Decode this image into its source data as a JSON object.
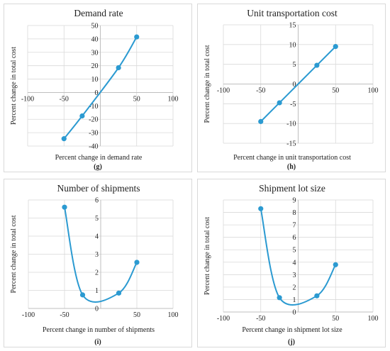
{
  "colors": {
    "series": "#2b9ad1",
    "axis": "#bfbfbf",
    "grid": "#d9d9d9"
  },
  "chart_data": [
    {
      "type": "line",
      "title": "Demand rate",
      "xlabel": "Percent change in demand rate",
      "ylabel": "Percent change in total cost",
      "panel_label": "(g)",
      "xlim": [
        -100,
        100
      ],
      "ylim": [
        -40,
        50
      ],
      "xticks": [
        -100,
        -50,
        0,
        50,
        100
      ],
      "yticks": [
        -40,
        -30,
        -20,
        -10,
        0,
        10,
        20,
        30,
        40,
        50
      ],
      "grid": true,
      "x": [
        -50,
        -25,
        25,
        50
      ],
      "y": [
        -34.5,
        -17.5,
        18.5,
        41.5
      ]
    },
    {
      "type": "line",
      "title": "Unit transportation cost",
      "xlabel": "Percent change in unit transportation cost",
      "ylabel": "Percent change in total cost",
      "panel_label": "(h)",
      "xlim": [
        -100,
        100
      ],
      "ylim": [
        -15,
        15
      ],
      "xticks": [
        -100,
        -50,
        0,
        50,
        100
      ],
      "yticks": [
        -15,
        -10,
        -5,
        0,
        5,
        10,
        15
      ],
      "grid": true,
      "x": [
        -50,
        -25,
        25,
        50
      ],
      "y": [
        -9.5,
        -4.75,
        4.75,
        9.5
      ]
    },
    {
      "type": "line",
      "title": "Number of shipments",
      "xlabel": "Percent change in number of shipments",
      "ylabel": "Percent change in total cost",
      "panel_label": "(i)",
      "xlim": [
        -100,
        100
      ],
      "ylim": [
        0,
        6
      ],
      "xticks": [
        -100,
        -50,
        0,
        50,
        100
      ],
      "yticks": [
        0,
        1,
        2,
        3,
        4,
        5,
        6
      ],
      "grid": true,
      "x": [
        -50,
        -25,
        25,
        50
      ],
      "y": [
        5.6,
        0.75,
        0.85,
        2.55
      ]
    },
    {
      "type": "line",
      "title": "Shipment lot size",
      "xlabel": "Percent change in shipment lot size",
      "ylabel": "Percent change in total cost",
      "panel_label": "(j)",
      "xlim": [
        -100,
        100
      ],
      "ylim": [
        0,
        9
      ],
      "xticks": [
        -100,
        -50,
        0,
        50,
        100
      ],
      "yticks": [
        0,
        1,
        2,
        3,
        4,
        5,
        6,
        7,
        8,
        9
      ],
      "grid": true,
      "x": [
        -50,
        -25,
        25,
        50
      ],
      "y": [
        8.3,
        1.15,
        1.3,
        3.8
      ]
    }
  ]
}
